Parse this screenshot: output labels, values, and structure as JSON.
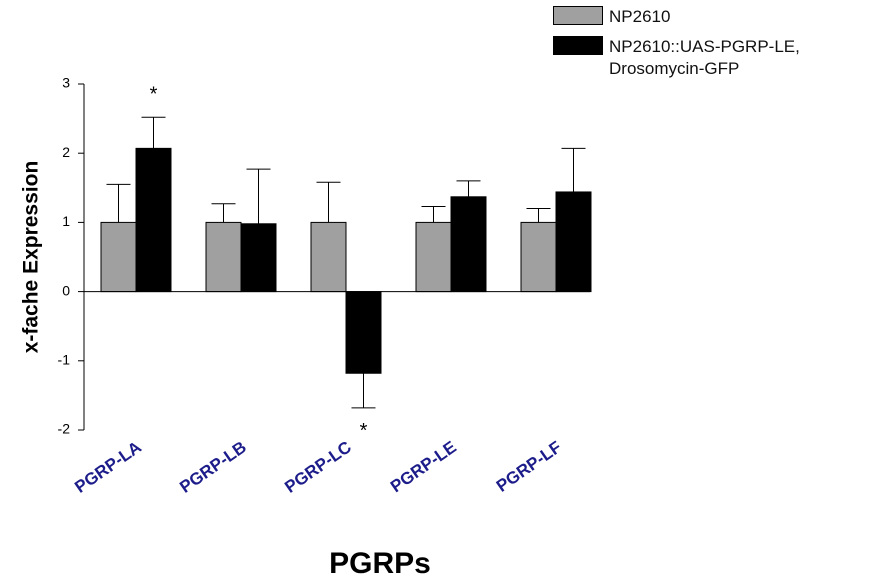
{
  "chart_data": {
    "type": "bar",
    "y_label": "x-fache Expression",
    "x_label": "PGRPs",
    "categories": [
      "PGRP-LA",
      "PGRP-LB",
      "PGRP-LC",
      "PGRP-LE",
      "PGRP-LF"
    ],
    "series": [
      {
        "name": "NP2610",
        "color": "#a0a0a0",
        "values": [
          1,
          1,
          1,
          1,
          1
        ],
        "errors": [
          0.55,
          0.27,
          0.58,
          0.23,
          0.2
        ]
      },
      {
        "name": "NP2610::UAS-PGRP-LE, Drosomycin-GFP",
        "color": "#000000",
        "values": [
          2.07,
          0.98,
          -1.18,
          1.37,
          1.44
        ],
        "errors": [
          0.45,
          0.79,
          0.5,
          0.23,
          0.63
        ]
      }
    ],
    "annotations": [
      {
        "text": "*",
        "category": "PGRP-LA"
      },
      {
        "text": "*",
        "category": "PGRP-LC"
      }
    ],
    "ylim": [
      -2,
      3
    ],
    "yticks": [
      -2,
      -1,
      0,
      1,
      2,
      3
    ],
    "legend": "top-right"
  }
}
